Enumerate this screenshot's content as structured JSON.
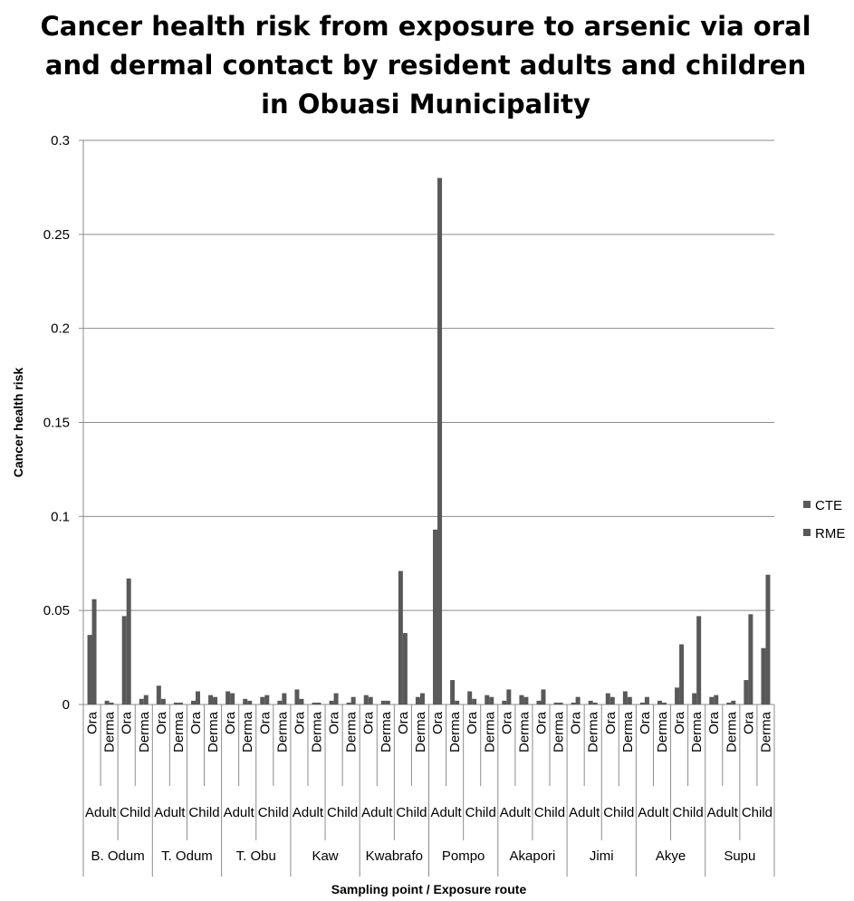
{
  "chart_data": {
    "type": "bar",
    "title": "Cancer health risk from exposure to arsenic via oral and dermal contact by resident adults and children in Obuasi Municipality",
    "title_lines": [
      "Cancer health risk from exposure to arsenic via oral",
      "and dermal contact by resident adults and children",
      "in Obuasi Municipality"
    ],
    "xlabel": "Sampling point / Exposure route",
    "ylabel": "Cancer health risk",
    "ylim": [
      0,
      0.3
    ],
    "yticks": [
      "0",
      "0.05",
      "0.1",
      "0.15",
      "0.2",
      "0.25",
      "0.3"
    ],
    "grid": true,
    "legend_position": "right",
    "groups": [
      "B. Odum",
      "T. Odum",
      "T. Obu",
      "Kaw",
      "Kwabrafo",
      "Pompo",
      "Akapori",
      "Jimi",
      "Akye",
      "Supu"
    ],
    "subgroups": [
      "Adult",
      "Child"
    ],
    "routes": [
      "Ora",
      "Derma"
    ],
    "series": [
      {
        "name": "CTE",
        "color": "#595959",
        "values": [
          0.037,
          0.002,
          0.047,
          0.003,
          0.01,
          0.001,
          0.002,
          0.005,
          0.007,
          0.003,
          0.004,
          0.002,
          0.008,
          0.001,
          0.002,
          0.001,
          0.005,
          0.002,
          0.071,
          0.004,
          0.093,
          0.013,
          0.007,
          0.005,
          0.002,
          0.005,
          0.002,
          0.001,
          0.001,
          0.002,
          0.006,
          0.007,
          0.001,
          0.002,
          0.009,
          0.006,
          0.004,
          0.001,
          0.013,
          0.03
        ]
      },
      {
        "name": "RME",
        "color": "#595959",
        "values": [
          0.056,
          0.001,
          0.067,
          0.005,
          0.003,
          0.001,
          0.007,
          0.004,
          0.006,
          0.002,
          0.005,
          0.006,
          0.003,
          0.001,
          0.006,
          0.004,
          0.004,
          0.002,
          0.038,
          0.006,
          0.28,
          0.002,
          0.003,
          0.004,
          0.008,
          0.004,
          0.008,
          0.001,
          0.004,
          0.001,
          0.004,
          0.004,
          0.004,
          0.001,
          0.032,
          0.047,
          0.005,
          0.002,
          0.048,
          0.069
        ]
      }
    ]
  }
}
